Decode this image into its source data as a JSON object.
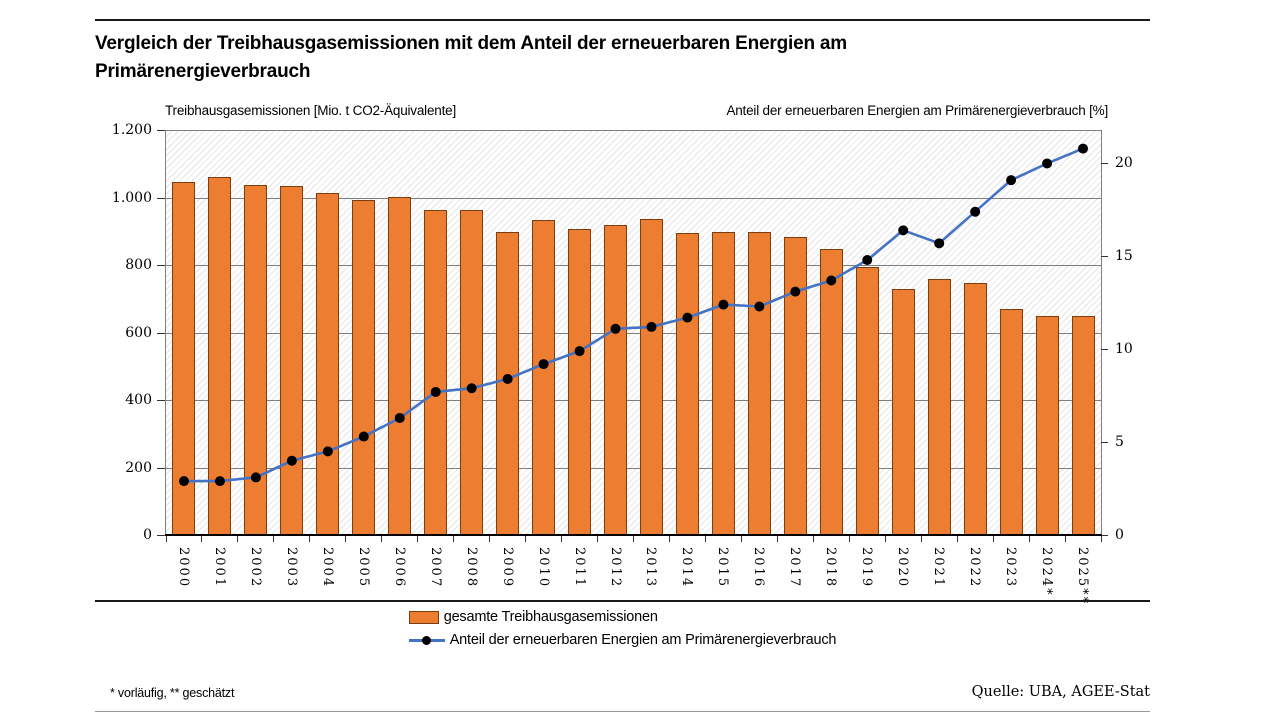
{
  "page": {
    "title": "Vergleich der Treibhausgasemissionen mit dem Anteil der erneuerbaren Energien am Primärenergieverbrauch",
    "footnote": "* vorläufig, ** geschätzt",
    "source": "Quelle: UBA, AGEE-Stat"
  },
  "legend": {
    "bars_label": "gesamte Treibhausgasemissionen",
    "line_label": "Anteil der erneuerbaren Energien am Primärenergieverbrauch"
  },
  "chart_data": {
    "type": "bar",
    "subtype": "combo-bar-line-dual-axis",
    "title": "Vergleich der Treibhausgasemissionen mit dem Anteil der erneuerbaren Energien am Primärenergieverbrauch",
    "left_axis_title": "Treibhausgasemissionen [Mio. t CO2-Äquivalente]",
    "right_axis_title": "Anteil der erneuerbaren Energien am Primärenergieverbrauch  [%]",
    "categories": [
      "2000",
      "2001",
      "2002",
      "2003",
      "2004",
      "2005",
      "2006",
      "2007",
      "2008",
      "2009",
      "2010",
      "2011",
      "2012",
      "2013",
      "2014",
      "2015",
      "2016",
      "2017",
      "2018",
      "2019",
      "2020",
      "2021",
      "2022",
      "2023",
      "2024*",
      "2025**"
    ],
    "series": [
      {
        "name": "gesamte Treibhausgasemissionen",
        "type": "bar",
        "axis": "left",
        "color": "#ED7D31",
        "border_color": "#7a3f10",
        "values": [
          1045,
          1060,
          1038,
          1033,
          1012,
          992,
          1003,
          964,
          964,
          898,
          933,
          906,
          918,
          936,
          894,
          899,
          899,
          882,
          847,
          795,
          729,
          760,
          746,
          669,
          650,
          649
        ]
      },
      {
        "name": "Anteil der erneuerbaren Energien am Primärenergieverbrauch",
        "type": "line",
        "axis": "right",
        "color": "#4472C4",
        "marker_color": "#000000",
        "values": [
          2.9,
          2.9,
          3.1,
          4.0,
          4.5,
          5.3,
          6.3,
          7.7,
          7.9,
          8.4,
          9.2,
          9.9,
          11.1,
          11.2,
          11.7,
          12.4,
          12.3,
          13.1,
          13.7,
          14.8,
          16.4,
          15.7,
          17.4,
          19.1,
          20.0,
          20.8
        ]
      }
    ],
    "left_axis": {
      "min": 0,
      "max": 1200,
      "tick_values": [
        0,
        200,
        400,
        600,
        800,
        1000,
        1200
      ],
      "tick_labels": [
        "0",
        "200",
        "400",
        "600",
        "800",
        "1.000",
        "1.200"
      ]
    },
    "right_axis": {
      "min": 0,
      "max": 21.8,
      "tick_values": [
        0,
        5,
        10,
        15,
        20
      ],
      "tick_labels": [
        "0",
        "5",
        "10",
        "15",
        "20"
      ]
    },
    "grid": true,
    "plot_background": "white-with-light-gray-diagonal-hatch",
    "legend_position": "bottom",
    "footnote": "* vorläufig, ** geschätzt",
    "source": "Quelle: UBA, AGEE-Stat"
  }
}
